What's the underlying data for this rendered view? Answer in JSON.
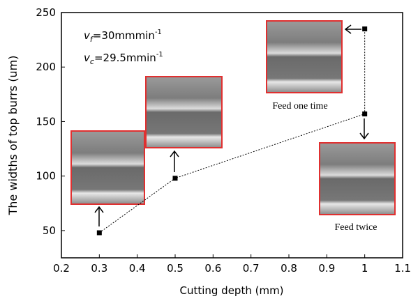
{
  "chart_data": {
    "type": "line",
    "x_label": "Cutting depth (mm)",
    "y_label": "The widths of top burrs (um)",
    "x": [
      0.3,
      0.5,
      1.0,
      1.0
    ],
    "series": [
      {
        "color": "#000000",
        "values": [
          48,
          98,
          157,
          235
        ]
      }
    ],
    "xlim": [
      0.2,
      1.1
    ],
    "xticks": [
      0.2,
      0.3,
      0.4,
      0.5,
      0.6,
      0.7,
      0.8,
      0.9,
      1.0,
      1.1
    ],
    "ylim": [
      25,
      250
    ],
    "yticks": [
      50,
      100,
      150,
      200,
      250
    ],
    "annotations": [
      {
        "parts": [
          "v",
          "f",
          "=30mmmin",
          "-1"
        ]
      },
      {
        "parts": [
          "v",
          "c",
          "=29.5mmin",
          "-1"
        ]
      },
      {
        "text": "Feed one time"
      },
      {
        "text": "Feed twice"
      }
    ]
  }
}
